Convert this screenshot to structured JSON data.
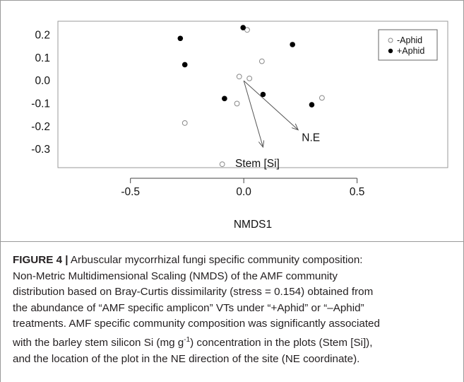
{
  "chart_data": {
    "type": "scatter",
    "xlabel": "NMDS1",
    "ylabel": "",
    "xlim": [
      -0.82,
      0.9
    ],
    "ylim": [
      -0.38,
      0.26
    ],
    "x_ticks": [
      -0.5,
      0.0,
      0.5
    ],
    "x_tick_labels": [
      "-0.5",
      "0.0",
      "0.5"
    ],
    "y_ticks": [
      0.2,
      0.1,
      0.0,
      -0.1,
      -0.2,
      -0.3
    ],
    "y_tick_labels": [
      "0.2",
      "0.1",
      "0.0",
      "-0.1",
      "-0.2",
      "-0.3"
    ],
    "grid": false,
    "legend_position": "top-right",
    "series": [
      {
        "name": "-Aphid",
        "marker": "open-circle",
        "color": "#888888",
        "points": [
          [
            0.015,
            0.222
          ],
          [
            0.08,
            0.085
          ],
          [
            -0.02,
            0.018
          ],
          [
            0.025,
            0.01
          ],
          [
            -0.03,
            -0.1
          ],
          [
            0.345,
            -0.075
          ],
          [
            -0.26,
            -0.185
          ],
          [
            -0.095,
            -0.365
          ]
        ]
      },
      {
        "name": "+Aphid",
        "marker": "filled-circle",
        "color": "#000000",
        "points": [
          [
            -0.003,
            0.232
          ],
          [
            -0.28,
            0.185
          ],
          [
            0.215,
            0.158
          ],
          [
            -0.26,
            0.07
          ],
          [
            -0.085,
            -0.078
          ],
          [
            0.085,
            -0.06
          ],
          [
            0.3,
            -0.105
          ]
        ]
      }
    ],
    "vectors": [
      {
        "label": "N.E",
        "from": [
          0.0,
          0.0
        ],
        "to": [
          0.24,
          -0.215
        ]
      },
      {
        "label": "Stem [Si]",
        "from": [
          0.0,
          0.0
        ],
        "to": [
          0.085,
          -0.29
        ]
      }
    ]
  },
  "caption": {
    "figure_label": "FIGURE 4 |",
    "line1": "Arbuscular mycorrhizal fungi specific community composition:",
    "line2": "Non-Metric Multidimensional Scaling (NMDS) of the AMF community",
    "line3": "distribution based on Bray-Curtis dissimilarity (stress = 0.154) obtained from",
    "line4": "the abundance of “AMF specific amplicon” VTs under “+Aphid” or “–Aphid”",
    "line5": "treatments. AMF specific community composition was significantly associated",
    "line6_pre": "with the barley stem silicon Si (mg g",
    "line6_sup": "-1",
    "line6_post": ") concentration in the plots (Stem [Si]),",
    "line7": "and the location of the plot in the NE direction of the site (NE coordinate)."
  }
}
